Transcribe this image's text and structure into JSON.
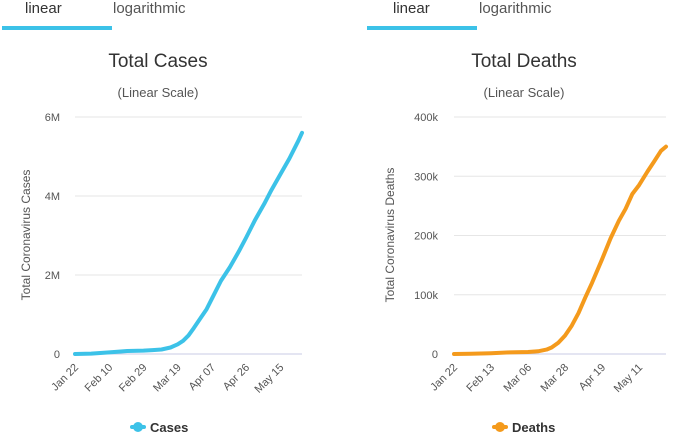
{
  "tabs": {
    "linear": "linear",
    "logarithmic": "logarithmic"
  },
  "chart_data": [
    {
      "type": "line",
      "title": "Total Cases",
      "subtitle": "(Linear Scale)",
      "ylabel": "Total Coronavirus Cases",
      "xticks": [
        "Jan 22",
        "Feb 10",
        "Feb 29",
        "Mar 19",
        "Apr 07",
        "Apr 26",
        "May 15"
      ],
      "yticks": [
        "0",
        "2M",
        "4M",
        "6M"
      ],
      "ylim": [
        0,
        6000000
      ],
      "grid": true,
      "legend_position": "bottom",
      "color": "#3cc2e8",
      "series": [
        {
          "name": "Cases",
          "x": [
            "Jan 22",
            "Jan 31",
            "Feb 10",
            "Feb 20",
            "Feb 29",
            "Mar 05",
            "Mar 10",
            "Mar 15",
            "Mar 19",
            "Mar 22",
            "Mar 25",
            "Mar 28",
            "Apr 01",
            "Apr 04",
            "Apr 07",
            "Apr 12",
            "Apr 17",
            "Apr 22",
            "Apr 26",
            "May 01",
            "May 06",
            "May 10",
            "May 15",
            "May 20",
            "May 25",
            "May 27"
          ],
          "values": [
            555,
            10000,
            40000,
            76000,
            86000,
            98000,
            115000,
            165000,
            245000,
            335000,
            470000,
            660000,
            930000,
            1130000,
            1400000,
            1850000,
            2200000,
            2600000,
            2950000,
            3400000,
            3800000,
            4150000,
            4550000,
            4950000,
            5400000,
            5600000
          ]
        }
      ]
    },
    {
      "type": "line",
      "title": "Total Deaths",
      "subtitle": "(Linear Scale)",
      "ylabel": "Total Coronavirus Deaths",
      "xticks": [
        "Jan 22",
        "Feb 13",
        "Mar 06",
        "Mar 28",
        "Apr 19",
        "May 11"
      ],
      "yticks": [
        "0",
        "100k",
        "200k",
        "300k",
        "400k"
      ],
      "ylim": [
        0,
        400000
      ],
      "grid": true,
      "legend_position": "bottom",
      "color": "#f49a1c",
      "series": [
        {
          "name": "Deaths",
          "x": [
            "Jan 22",
            "Feb 01",
            "Feb 13",
            "Feb 24",
            "Mar 06",
            "Mar 12",
            "Mar 17",
            "Mar 20",
            "Mar 24",
            "Mar 28",
            "Apr 01",
            "Apr 05",
            "Apr 09",
            "Apr 13",
            "Apr 19",
            "Apr 24",
            "Apr 29",
            "May 03",
            "May 07",
            "May 11",
            "May 16",
            "May 20",
            "May 24",
            "May 27"
          ],
          "values": [
            17,
            300,
            1400,
            2700,
            3400,
            4600,
            7500,
            11000,
            19000,
            31000,
            48000,
            69000,
            95000,
            120000,
            160000,
            195000,
            225000,
            245000,
            270000,
            285000,
            308000,
            325000,
            343000,
            350000
          ]
        }
      ]
    }
  ]
}
